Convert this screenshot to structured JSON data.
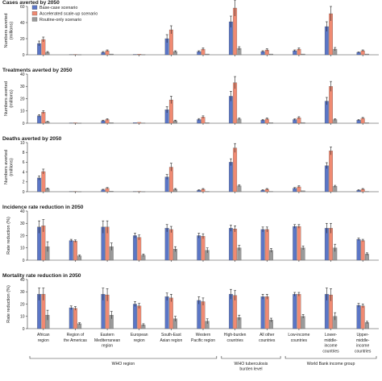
{
  "chart_data": {
    "type": "bar",
    "categories": [
      [
        "African",
        "region"
      ],
      [
        "Region of",
        "the Americas"
      ],
      [
        "Eastern",
        "Mediterranean",
        "region"
      ],
      [
        "European",
        "region"
      ],
      [
        "South-East",
        "Asian region"
      ],
      [
        "Western",
        "Pacific region"
      ],
      [
        "High-burden",
        "countries"
      ],
      [
        "All other",
        "countries"
      ],
      [
        "Low-income",
        "countries"
      ],
      [
        "Lower-",
        "middle-",
        "income",
        "countries"
      ],
      [
        "Upper-",
        "middle-",
        "income",
        "countries"
      ]
    ],
    "groups": [
      {
        "label": "WHO region",
        "from": 0,
        "to": 5
      },
      {
        "label": "WHO tuberculosis",
        "label2": "burden level",
        "from": 6,
        "to": 7
      },
      {
        "label": "World Bank income group",
        "from": 8,
        "to": 10
      }
    ],
    "legend": {
      "placement": "top-left",
      "entries": [
        "Base-case scenario",
        "Accelerated scale-up scenario",
        "Routine-only scenario"
      ]
    },
    "colors": [
      "#5b76c6",
      "#f08a72",
      "#9a9a9a"
    ],
    "panels": [
      {
        "title": "Cases averted by 2050",
        "ylabel": "Numbers averted",
        "ylabel2": "(millions)",
        "ylim": [
          0,
          60
        ],
        "yticks": [
          0,
          20,
          40,
          60
        ],
        "series": [
          {
            "name": "Base-case scenario",
            "values": [
              14,
              0.3,
              3,
              0.5,
              20,
              4,
              41,
              4,
              5,
              35,
              3
            ],
            "err": [
              3,
              0.1,
              1,
              0.2,
              5,
              1,
              7,
              1,
              1,
              6,
              0.5
            ]
          },
          {
            "name": "Accelerated scale-up scenario",
            "values": [
              19,
              0.5,
              5,
              0.8,
              31,
              7,
              58,
              6,
              7,
              51,
              5
            ],
            "err": [
              3,
              0.1,
              1,
              0.2,
              5,
              1.5,
              10,
              1.5,
              1.5,
              9,
              1
            ]
          },
          {
            "name": "Routine-only scenario",
            "values": [
              3,
              0.1,
              1,
              0.2,
              4,
              1,
              8,
              1,
              1,
              7,
              1
            ],
            "err": [
              1,
              0.05,
              0.3,
              0.1,
              1,
              0.3,
              2,
              0.3,
              0.3,
              2,
              0.3
            ]
          }
        ]
      },
      {
        "title": "Treatments averted by 2050",
        "ylabel": "Numbers averted",
        "ylabel2": "(millions)",
        "ylim": [
          0,
          40
        ],
        "yticks": [
          0,
          10,
          20,
          30,
          40
        ],
        "series": [
          {
            "name": "Base-case scenario",
            "values": [
              6,
              0.3,
              2,
              0.5,
              11,
              3,
              22,
              2.5,
              3,
              18,
              2.5
            ],
            "err": [
              1,
              0.1,
              0.5,
              0.2,
              2.5,
              0.8,
              4,
              0.6,
              0.6,
              3,
              0.5
            ]
          },
          {
            "name": "Accelerated scale-up scenario",
            "values": [
              9,
              0.4,
              3,
              0.7,
              19,
              5,
              33,
              3.5,
              4.5,
              30,
              4
            ],
            "err": [
              1.2,
              0.1,
              0.7,
              0.2,
              3,
              1,
              5,
              0.8,
              0.8,
              4,
              0.7
            ]
          },
          {
            "name": "Routine-only scenario",
            "values": [
              1.2,
              0.1,
              0.5,
              0.2,
              2,
              0.5,
              3.5,
              0.5,
              0.6,
              3,
              0.4
            ],
            "err": [
              0.3,
              0.05,
              0.2,
              0.05,
              0.5,
              0.2,
              0.8,
              0.2,
              0.2,
              0.7,
              0.1
            ]
          }
        ]
      },
      {
        "title": "Deaths averted by 2050",
        "ylabel": "Numbers averted",
        "ylabel2": "(millions)",
        "ylim": [
          0,
          10
        ],
        "yticks": [
          0,
          2,
          4,
          6,
          8,
          10
        ],
        "series": [
          {
            "name": "Base-case scenario",
            "values": [
              2.8,
              0.05,
              0.4,
              0.05,
              3,
              0.3,
              6,
              0.3,
              0.7,
              5.3,
              0.3
            ],
            "err": [
              0.4,
              0.02,
              0.1,
              0.02,
              0.5,
              0.1,
              0.7,
              0.1,
              0.15,
              0.6,
              0.1
            ]
          },
          {
            "name": "Accelerated scale-up scenario",
            "values": [
              4.1,
              0.07,
              0.7,
              0.08,
              5,
              0.5,
              8.9,
              0.5,
              1,
              8.3,
              0.5
            ],
            "err": [
              0.5,
              0.03,
              0.15,
              0.03,
              0.8,
              0.15,
              0.9,
              0.15,
              0.2,
              0.8,
              0.15
            ]
          },
          {
            "name": "Routine-only scenario",
            "values": [
              0.6,
              0.01,
              0.1,
              0.01,
              0.5,
              0.05,
              1.2,
              0.05,
              0.2,
              1.1,
              0.05
            ],
            "err": [
              0.15,
              0.01,
              0.05,
              0.01,
              0.15,
              0.02,
              0.2,
              0.02,
              0.05,
              0.2,
              0.02
            ]
          }
        ]
      },
      {
        "title": "Incidence rate reduction in 2050",
        "ylabel": "Rate reduction (%)",
        "ylim": [
          0,
          40
        ],
        "yticks": [
          0,
          10,
          20,
          30,
          40
        ],
        "series": [
          {
            "name": "Base-case scenario",
            "values": [
              27,
              16,
              27,
              20,
              26,
              20,
              26,
              25,
              27.5,
              26,
              17
            ],
            "err": [
              5,
              1,
              5,
              2,
              3,
              2,
              2.5,
              2,
              1.5,
              4,
              1
            ]
          },
          {
            "name": "Accelerated scale-up scenario",
            "values": [
              28,
              15.5,
              27,
              18.5,
              25,
              19.5,
              25.5,
              25,
              27.5,
              26,
              16
            ],
            "err": [
              5,
              1,
              5,
              2,
              2.5,
              2,
              2.5,
              2,
              1.5,
              4,
              1
            ]
          },
          {
            "name": "Routine-only scenario",
            "values": [
              11,
              3.5,
              11,
              4,
              9,
              8,
              10,
              8,
              10,
              10,
              5
            ],
            "err": [
              4,
              0.7,
              3,
              1,
              2,
              2,
              2,
              1.5,
              1.5,
              3,
              1
            ]
          }
        ]
      },
      {
        "title": "Mortality rate reduction in 2050",
        "ylabel": "Rate reduction (%)",
        "ylim": [
          0,
          40
        ],
        "yticks": [
          0,
          10,
          20,
          30,
          40
        ],
        "series": [
          {
            "name": "Base-case scenario",
            "values": [
              28,
              17,
              28,
              20,
              26,
              23,
              28,
              26,
              28,
              28,
              19
            ],
            "err": [
              5,
              1.5,
              5,
              2,
              3,
              3,
              4,
              2,
              1.5,
              5,
              1.5
            ]
          },
          {
            "name": "Accelerated scale-up scenario",
            "values": [
              28,
              16.5,
              27.5,
              18.5,
              25,
              22,
              27,
              26,
              28,
              27.5,
              18.5
            ],
            "err": [
              5,
              1.5,
              5,
              2,
              3,
              3,
              4,
              2,
              1.5,
              5,
              1.5
            ]
          },
          {
            "name": "Routine-only scenario",
            "values": [
              11,
              4,
              11,
              3,
              8,
              6,
              9,
              7,
              10,
              10,
              5
            ],
            "err": [
              4,
              0.8,
              3,
              1,
              2,
              2,
              2,
              1.5,
              1.5,
              3,
              1
            ]
          }
        ]
      }
    ]
  }
}
